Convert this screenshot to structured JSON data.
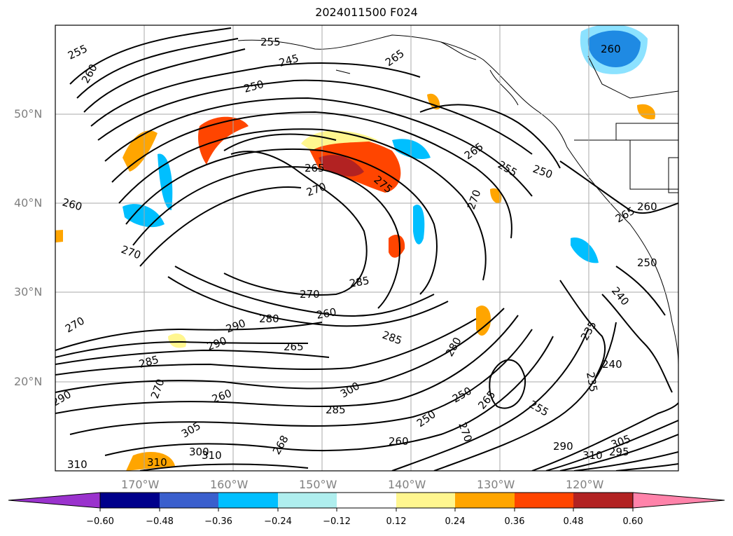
{
  "title": "2024011500 F024",
  "lat_labels": [
    "50°N",
    "40°N",
    "30°N",
    "20°N"
  ],
  "lon_labels": [
    "170°W",
    "160°W",
    "150°W",
    "140°W",
    "130°W",
    "120°W"
  ],
  "colorbar": {
    "ticks": [
      "−0.60",
      "−0.48",
      "−0.36",
      "−0.24",
      "−0.12",
      "0.12",
      "0.24",
      "0.36",
      "0.48",
      "0.60"
    ],
    "colors": [
      "#9a32cd",
      "#00008b",
      "#3a5fcd",
      "#00bfff",
      "#afeeee",
      "#ffffff",
      "#fff68f",
      "#ffa500",
      "#ff4500",
      "#b22222",
      "#ff83aa"
    ]
  },
  "contour_labels": [
    "255",
    "260",
    "265",
    "245",
    "250",
    "255",
    "265",
    "250",
    "265",
    "275",
    "265",
    "255",
    "250",
    "260",
    "260",
    "270",
    "270",
    "265",
    "270",
    "250",
    "260",
    "290",
    "285",
    "265",
    "285",
    "270",
    "280",
    "280",
    "240",
    "235",
    "240",
    "235",
    "290",
    "300",
    "285",
    "250",
    "260",
    "265",
    "270",
    "255",
    "250",
    "305",
    "300",
    "310",
    "295",
    "305",
    "310",
    "290",
    "310",
    "270",
    "280",
    "290",
    "260",
    "268",
    "300",
    "305",
    "310",
    "295",
    "285",
    "260",
    "270"
  ]
}
